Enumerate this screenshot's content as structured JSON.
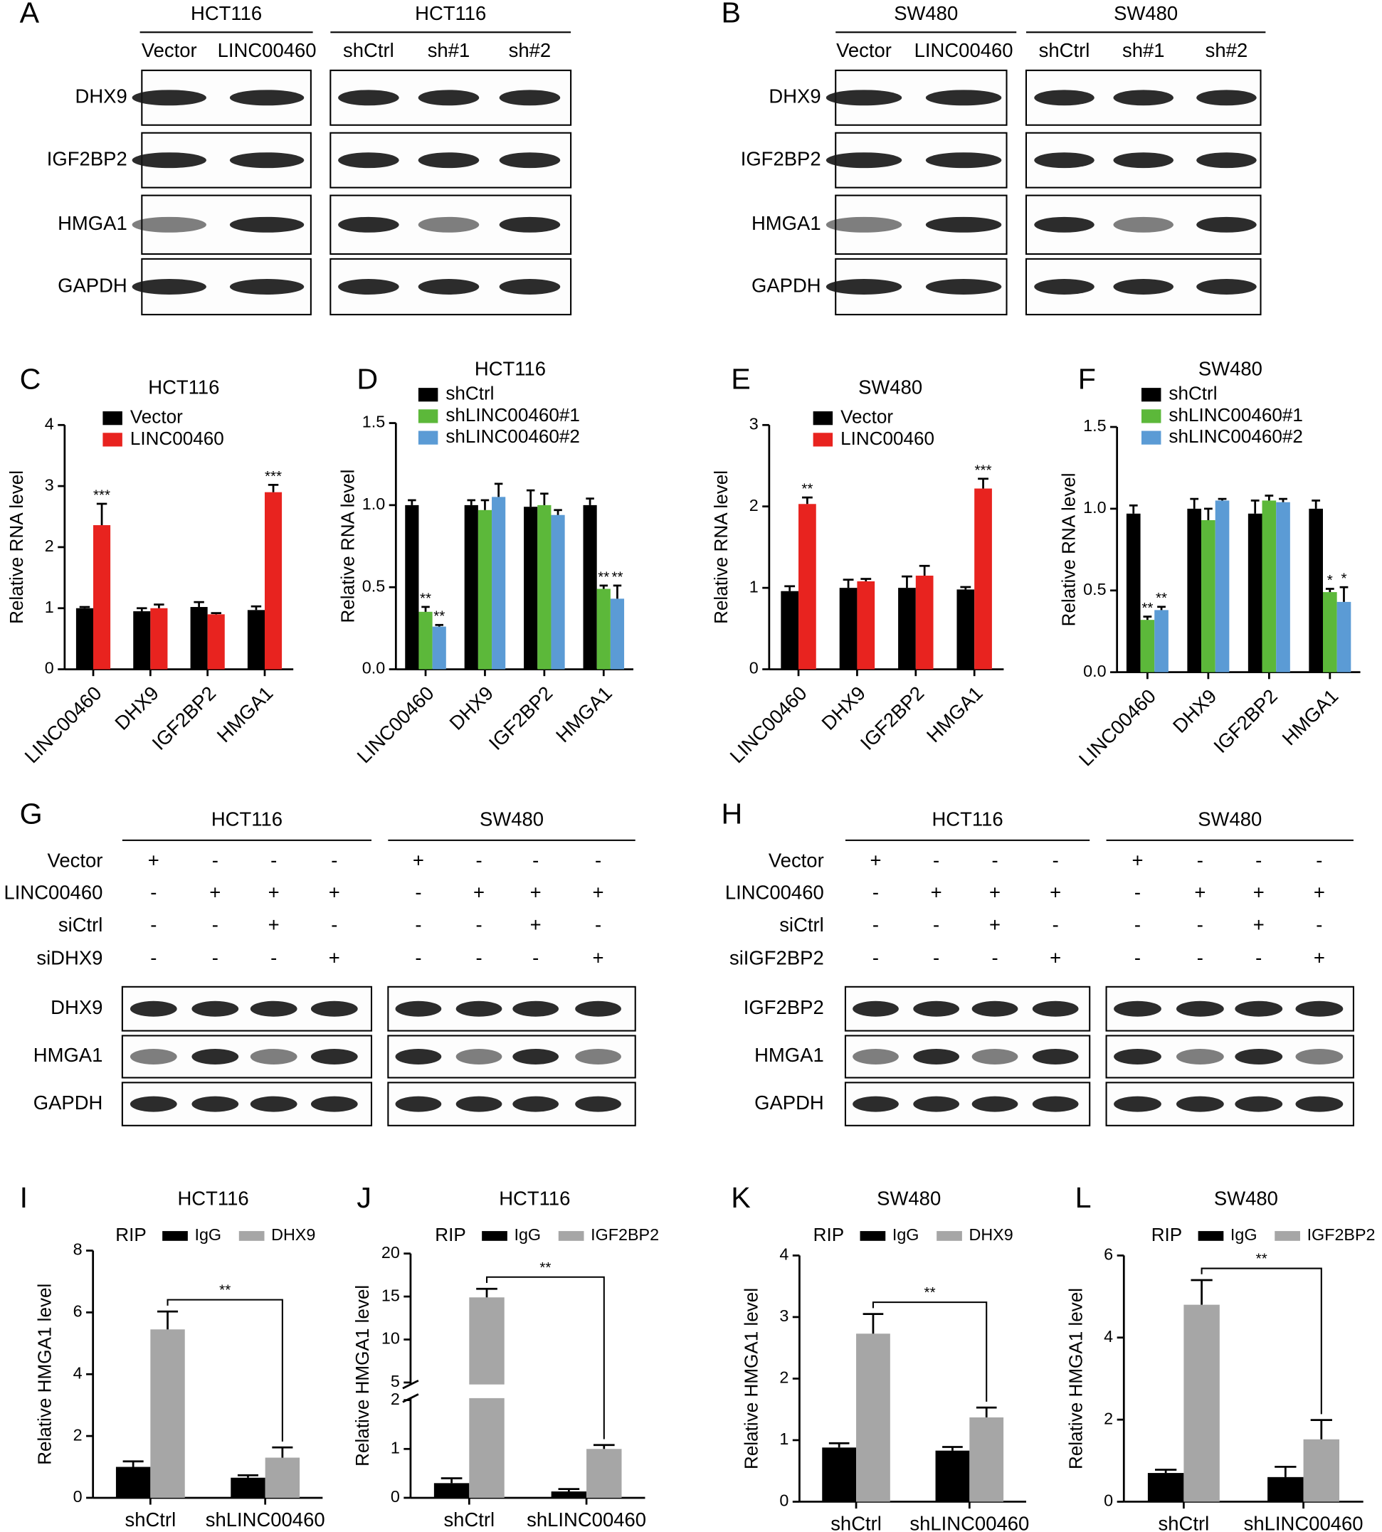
{
  "blots": [
    {
      "panel": "A",
      "groups": [
        {
          "title": "HCT116",
          "lanes": [
            "Vector",
            "LINC00460"
          ]
        },
        {
          "title": "HCT116",
          "lanes": [
            "shCtrl",
            "sh#1",
            "sh#2"
          ]
        }
      ],
      "rows": [
        "DHX9",
        "IGF2BP2",
        "HMGA1",
        "GAPDH"
      ]
    },
    {
      "panel": "B",
      "groups": [
        {
          "title": "SW480",
          "lanes": [
            "Vector",
            "LINC00460"
          ]
        },
        {
          "title": "SW480",
          "lanes": [
            "shCtrl",
            "sh#1",
            "sh#2"
          ]
        }
      ],
      "rows": [
        "DHX9",
        "IGF2BP2",
        "HMGA1",
        "GAPDH"
      ]
    },
    {
      "panel": "G",
      "groups": [
        {
          "title": "HCT116"
        },
        {
          "title": "SW480"
        }
      ],
      "conditions": [
        {
          "label": "Vector",
          "signs": [
            "+",
            "-",
            "-",
            "-",
            "+",
            "-",
            "-",
            "-"
          ]
        },
        {
          "label": "LINC00460",
          "signs": [
            "-",
            "+",
            "+",
            "+",
            "-",
            "+",
            "+",
            "+"
          ]
        },
        {
          "label": "siCtrl",
          "signs": [
            "-",
            "-",
            "+",
            "-",
            "-",
            "-",
            "+",
            "-"
          ]
        },
        {
          "label": "siDHX9",
          "signs": [
            "-",
            "-",
            "-",
            "+",
            "-",
            "-",
            "-",
            "+"
          ]
        }
      ],
      "rows": [
        "DHX9",
        "HMGA1",
        "GAPDH"
      ]
    },
    {
      "panel": "H",
      "groups": [
        {
          "title": "HCT116"
        },
        {
          "title": "SW480"
        }
      ],
      "conditions": [
        {
          "label": "Vector",
          "signs": [
            "+",
            "-",
            "-",
            "-",
            "+",
            "-",
            "-",
            "-"
          ]
        },
        {
          "label": "LINC00460",
          "signs": [
            "-",
            "+",
            "+",
            "+",
            "-",
            "+",
            "+",
            "+"
          ]
        },
        {
          "label": "siCtrl",
          "signs": [
            "-",
            "-",
            "+",
            "-",
            "-",
            "-",
            "+",
            "-"
          ]
        },
        {
          "label": "siIGF2BP2",
          "signs": [
            "-",
            "-",
            "-",
            "+",
            "-",
            "-",
            "-",
            "+"
          ]
        }
      ],
      "rows": [
        "IGF2BP2",
        "HMGA1",
        "GAPDH"
      ]
    }
  ],
  "chart_data": [
    {
      "type": "bar",
      "panel": "C",
      "title": "HCT116",
      "y_label": "Relative RNA level",
      "categories": [
        "LINC00460",
        "DHX9",
        "IGF2BP2",
        "HMGA1"
      ],
      "ylim": [
        0,
        4
      ],
      "yticks": [
        0,
        1,
        2,
        3,
        4
      ],
      "series": [
        {
          "name": "Vector",
          "color": "#000000",
          "values": [
            1.0,
            0.95,
            1.02,
            0.97
          ],
          "errors": [
            0.02,
            0.05,
            0.08,
            0.06
          ],
          "significance": [
            null,
            null,
            null,
            null
          ]
        },
        {
          "name": "LINC00460",
          "color": "#e8231f",
          "values": [
            2.36,
            1.0,
            0.9,
            2.9
          ],
          "errors": [
            0.35,
            0.06,
            0.02,
            0.12
          ],
          "significance": [
            "***",
            null,
            null,
            "***"
          ]
        }
      ]
    },
    {
      "type": "bar",
      "panel": "D",
      "title": "HCT116",
      "y_label": "Relative RNA level",
      "categories": [
        "LINC00460",
        "DHX9",
        "IGF2BP2",
        "HMGA1"
      ],
      "ylim": [
        0,
        1.5
      ],
      "yticks": [
        {
          "value": 0,
          "label": "0.0"
        },
        0.5,
        {
          "value": 1,
          "label": "1.0"
        },
        1.5
      ],
      "series": [
        {
          "name": "shCtrl",
          "color": "#000000",
          "values": [
            1.0,
            1.0,
            0.99,
            1.0
          ],
          "errors": [
            0.03,
            0.03,
            0.1,
            0.04
          ],
          "significance": [
            null,
            null,
            null,
            null
          ]
        },
        {
          "name": "shLINC00460#1",
          "color": "#5cb83a",
          "values": [
            0.35,
            0.97,
            1.0,
            0.49
          ],
          "errors": [
            0.03,
            0.06,
            0.07,
            0.02
          ],
          "significance": [
            "**",
            null,
            null,
            "**"
          ]
        },
        {
          "name": "shLINC00460#2",
          "color": "#5b9bd5",
          "values": [
            0.26,
            1.05,
            0.94,
            0.43
          ],
          "errors": [
            0.01,
            0.08,
            0.03,
            0.08
          ],
          "significance": [
            "**",
            null,
            null,
            "**"
          ]
        }
      ]
    },
    {
      "type": "bar",
      "panel": "E",
      "title": "SW480",
      "y_label": "Relative RNA level",
      "categories": [
        "LINC00460",
        "DHX9",
        "IGF2BP2",
        "HMGA1"
      ],
      "ylim": [
        0,
        3
      ],
      "yticks": [
        0,
        1,
        2,
        3
      ],
      "series": [
        {
          "name": "Vector",
          "color": "#000000",
          "values": [
            0.96,
            1.0,
            1.0,
            0.98
          ],
          "errors": [
            0.06,
            0.1,
            0.14,
            0.03
          ],
          "significance": [
            null,
            null,
            null,
            null
          ]
        },
        {
          "name": "LINC00460",
          "color": "#e8231f",
          "values": [
            2.03,
            1.08,
            1.15,
            2.22
          ],
          "errors": [
            0.08,
            0.03,
            0.12,
            0.12
          ],
          "significance": [
            "**",
            null,
            null,
            "***"
          ]
        }
      ]
    },
    {
      "type": "bar",
      "panel": "F",
      "title": "SW480",
      "y_label": "Relative RNA level",
      "categories": [
        "LINC00460",
        "DHX9",
        "IGF2BP2",
        "HMGA1"
      ],
      "ylim": [
        0,
        1.5
      ],
      "yticks": [
        {
          "value": 0,
          "label": "0.0"
        },
        0.5,
        {
          "value": 1,
          "label": "1.0"
        },
        1.5
      ],
      "series": [
        {
          "name": "shCtrl",
          "color": "#000000",
          "values": [
            0.97,
            1.0,
            0.97,
            1.0
          ],
          "errors": [
            0.05,
            0.06,
            0.08,
            0.05
          ],
          "significance": [
            null,
            null,
            null,
            null
          ]
        },
        {
          "name": "shLINC00460#1",
          "color": "#5cb83a",
          "values": [
            0.32,
            0.93,
            1.05,
            0.49
          ],
          "errors": [
            0.02,
            0.07,
            0.03,
            0.02
          ],
          "significance": [
            "**",
            null,
            null,
            "*"
          ]
        },
        {
          "name": "shLINC00460#2",
          "color": "#5b9bd5",
          "values": [
            0.38,
            1.05,
            1.04,
            0.43
          ],
          "errors": [
            0.02,
            0.01,
            0.02,
            0.09
          ],
          "significance": [
            "**",
            null,
            null,
            "*"
          ]
        }
      ]
    },
    {
      "type": "bar",
      "panel": "I",
      "title": "HCT116",
      "y_label": "Relative HMGA1 level",
      "legend_title": "RIP",
      "bracket_label": "**",
      "categories": [
        "shCtrl",
        "shLINC00460"
      ],
      "ylim": [
        0,
        8
      ],
      "yticks": [
        0,
        2,
        4,
        6,
        8
      ],
      "series": [
        {
          "name": "IgG",
          "color": "#000000",
          "values": [
            1.0,
            0.65
          ],
          "errors": [
            0.18,
            0.08
          ]
        },
        {
          "name": "DHX9",
          "color": "#a6a6a6",
          "values": [
            5.45,
            1.3
          ],
          "errors": [
            0.58,
            0.33
          ]
        }
      ]
    },
    {
      "type": "bar",
      "panel": "J",
      "title": "HCT116",
      "y_label": "Relative HMGA1 level",
      "legend_title": "RIP",
      "bracket_label": "**",
      "categories": [
        "shCtrl",
        "shLINC00460"
      ],
      "ylim": [
        0,
        20
      ],
      "yticks": [
        0,
        1,
        2,
        5,
        10,
        15,
        20
      ],
      "axis_break": [
        2,
        5
      ],
      "series": [
        {
          "name": "IgG",
          "color": "#000000",
          "values": [
            0.3,
            0.13
          ],
          "errors": [
            0.1,
            0.05
          ]
        },
        {
          "name": "IGF2BP2",
          "color": "#a6a6a6",
          "values": [
            14.9,
            1.0
          ],
          "errors": [
            1.0,
            0.08
          ]
        }
      ]
    },
    {
      "type": "bar",
      "panel": "K",
      "title": "SW480",
      "y_label": "Relative HMGA1 level",
      "legend_title": "RIP",
      "bracket_label": "**",
      "categories": [
        "shCtrl",
        "shLINC00460"
      ],
      "ylim": [
        0,
        4
      ],
      "yticks": [
        0,
        1,
        2,
        3,
        4
      ],
      "series": [
        {
          "name": "IgG",
          "color": "#000000",
          "values": [
            0.88,
            0.83
          ],
          "errors": [
            0.07,
            0.06
          ]
        },
        {
          "name": "DHX9",
          "color": "#a6a6a6",
          "values": [
            2.73,
            1.37
          ],
          "errors": [
            0.32,
            0.16
          ]
        }
      ]
    },
    {
      "type": "bar",
      "panel": "L",
      "title": "SW480",
      "y_label": "Relative HMGA1 level",
      "legend_title": "RIP",
      "bracket_label": "**",
      "categories": [
        "shCtrl",
        "shLINC00460"
      ],
      "ylim": [
        0,
        6
      ],
      "yticks": [
        0,
        2,
        4,
        6
      ],
      "series": [
        {
          "name": "IgG",
          "color": "#000000",
          "values": [
            0.7,
            0.6
          ],
          "errors": [
            0.08,
            0.25
          ]
        },
        {
          "name": "IGF2BP2",
          "color": "#a6a6a6",
          "values": [
            4.8,
            1.52
          ],
          "errors": [
            0.6,
            0.47
          ]
        }
      ]
    }
  ]
}
